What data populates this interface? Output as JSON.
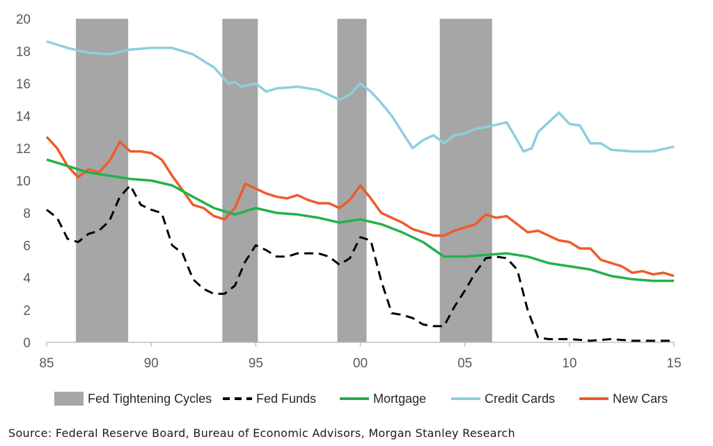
{
  "source": "Source: Federal Reserve Board, Bureau of Economic Advisors, Morgan Stanley Research",
  "chart_data": {
    "type": "line",
    "title": "",
    "xlabel": "",
    "ylabel": "",
    "xlim": [
      1985,
      2015
    ],
    "ylim": [
      0,
      20
    ],
    "x_ticks": [
      1985,
      1990,
      1995,
      2000,
      2005,
      2010,
      2015
    ],
    "x_tick_labels": [
      "85",
      "90",
      "95",
      "00",
      "05",
      "10",
      "15"
    ],
    "y_ticks": [
      0,
      2,
      4,
      6,
      8,
      10,
      12,
      14,
      16,
      18,
      20
    ],
    "y_tick_labels": [
      "0",
      "2",
      "4",
      "6",
      "8",
      "10",
      "12",
      "14",
      "16",
      "18",
      "20"
    ],
    "grid": false,
    "legend_position": "bottom",
    "tightening_cycles": [
      {
        "start": 1986.4,
        "end": 1988.9
      },
      {
        "start": 1993.4,
        "end": 1995.1
      },
      {
        "start": 1998.9,
        "end": 2000.3
      },
      {
        "start": 2003.8,
        "end": 2006.3
      }
    ],
    "legend": [
      {
        "key": "tightening",
        "label": "Fed Tightening Cycles",
        "color": "#a6a6a6",
        "style": "box"
      },
      {
        "key": "fed_funds",
        "label": "Fed Funds",
        "color": "#000000",
        "style": "dashed"
      },
      {
        "key": "mortgage",
        "label": "Mortgage",
        "color": "#22b14c",
        "style": "solid"
      },
      {
        "key": "credit_cards",
        "label": "Credit Cards",
        "color": "#8ccfde",
        "style": "solid"
      },
      {
        "key": "new_cars",
        "label": "New Cars",
        "color": "#f05a28",
        "style": "solid"
      }
    ],
    "series": [
      {
        "key": "credit_cards",
        "name": "Credit Cards",
        "color": "#8ccfde",
        "x": [
          1985,
          1986,
          1987,
          1988,
          1989,
          1990,
          1991,
          1992,
          1993,
          1993.7,
          1994,
          1994.3,
          1995,
          1995.5,
          1996,
          1997,
          1998,
          1999,
          1999.5,
          2000,
          2000.5,
          2001,
          2001.5,
          2002,
          2002.5,
          2003,
          2003.5,
          2004,
          2004.5,
          2005,
          2005.5,
          2006,
          2007,
          2007.5,
          2007.8,
          2008.2,
          2008.5,
          2009,
          2009.5,
          2010,
          2010.5,
          2011,
          2011.5,
          2012,
          2013,
          2014,
          2015
        ],
        "values": [
          18.6,
          18.2,
          17.9,
          17.8,
          18.1,
          18.2,
          18.2,
          17.8,
          17.0,
          16.0,
          16.1,
          15.8,
          16.0,
          15.5,
          15.7,
          15.8,
          15.6,
          15.0,
          15.3,
          16.0,
          15.5,
          14.8,
          14.0,
          13.0,
          12.0,
          12.5,
          12.8,
          12.3,
          12.8,
          12.9,
          13.2,
          13.3,
          13.6,
          12.5,
          11.8,
          12.0,
          13.0,
          13.6,
          14.2,
          13.5,
          13.4,
          12.3,
          12.3,
          11.9,
          11.8,
          11.8,
          12.1
        ]
      },
      {
        "key": "new_cars",
        "name": "New Cars",
        "color": "#f05a28",
        "x": [
          1985,
          1985.5,
          1986,
          1986.5,
          1987,
          1987.5,
          1988,
          1988.5,
          1989,
          1989.5,
          1990,
          1990.5,
          1991,
          1991.5,
          1992,
          1992.5,
          1993,
          1993.5,
          1994,
          1994.5,
          1995,
          1995.5,
          1996,
          1996.5,
          1997,
          1997.5,
          1998,
          1998.5,
          1999,
          1999.5,
          2000,
          2000.5,
          2001,
          2001.5,
          2002,
          2002.5,
          2003,
          2003.5,
          2004,
          2004.5,
          2005,
          2005.5,
          2006,
          2006.5,
          2007,
          2007.5,
          2008,
          2008.5,
          2009,
          2009.5,
          2010,
          2010.5,
          2011,
          2011.5,
          2012,
          2012.5,
          2013,
          2013.5,
          2014,
          2014.5,
          2015
        ],
        "values": [
          12.7,
          12.0,
          10.9,
          10.2,
          10.7,
          10.5,
          11.2,
          12.4,
          11.8,
          11.8,
          11.7,
          11.3,
          10.3,
          9.4,
          8.5,
          8.3,
          7.8,
          7.6,
          8.3,
          9.8,
          9.5,
          9.2,
          9.0,
          8.9,
          9.1,
          8.8,
          8.6,
          8.6,
          8.3,
          8.8,
          9.7,
          8.9,
          8.0,
          7.7,
          7.4,
          7.0,
          6.8,
          6.6,
          6.6,
          6.9,
          7.1,
          7.3,
          7.9,
          7.7,
          7.8,
          7.3,
          6.8,
          6.9,
          6.6,
          6.3,
          6.2,
          5.8,
          5.8,
          5.1,
          4.9,
          4.7,
          4.3,
          4.4,
          4.2,
          4.3,
          4.1
        ]
      },
      {
        "key": "mortgage",
        "name": "Mortgage",
        "color": "#22b14c",
        "x": [
          1985,
          1986,
          1987,
          1988,
          1989,
          1990,
          1991,
          1992,
          1993,
          1994,
          1995,
          1996,
          1997,
          1998,
          1999,
          2000,
          2001,
          2002,
          2003,
          2004,
          2005,
          2006,
          2007,
          2008,
          2009,
          2010,
          2011,
          2012,
          2013,
          2014,
          2015
        ],
        "values": [
          11.3,
          10.9,
          10.5,
          10.3,
          10.1,
          10.0,
          9.7,
          9.0,
          8.3,
          7.9,
          8.3,
          8.0,
          7.9,
          7.7,
          7.4,
          7.6,
          7.3,
          6.8,
          6.2,
          5.3,
          5.3,
          5.4,
          5.5,
          5.3,
          4.9,
          4.7,
          4.5,
          4.1,
          3.9,
          3.8,
          3.8
        ]
      },
      {
        "key": "fed_funds",
        "name": "Fed Funds",
        "color": "#000000",
        "x": [
          1985,
          1985.5,
          1986,
          1986.5,
          1987,
          1987.5,
          1988,
          1988.5,
          1989,
          1989.5,
          1990,
          1990.5,
          1991,
          1991.5,
          1992,
          1992.5,
          1993,
          1993.5,
          1994,
          1994.5,
          1995,
          1995.5,
          1996,
          1996.5,
          1997,
          1997.5,
          1998,
          1998.5,
          1999,
          1999.5,
          2000,
          2000.5,
          2001,
          2001.5,
          2002,
          2002.5,
          2003,
          2003.5,
          2004,
          2004.5,
          2005,
          2005.5,
          2006,
          2006.5,
          2007,
          2007.5,
          2008,
          2008.5,
          2009,
          2010,
          2011,
          2012,
          2013,
          2014,
          2015
        ],
        "values": [
          8.2,
          7.7,
          6.4,
          6.2,
          6.7,
          6.9,
          7.5,
          9.0,
          9.7,
          8.5,
          8.2,
          8.0,
          6.0,
          5.5,
          3.9,
          3.3,
          3.0,
          3.0,
          3.5,
          5.0,
          6.0,
          5.7,
          5.3,
          5.3,
          5.5,
          5.5,
          5.5,
          5.3,
          4.8,
          5.2,
          6.5,
          6.3,
          3.8,
          1.8,
          1.7,
          1.5,
          1.1,
          1.0,
          1.0,
          2.2,
          3.2,
          4.3,
          5.2,
          5.3,
          5.2,
          4.5,
          2.0,
          0.3,
          0.2,
          0.2,
          0.1,
          0.2,
          0.1,
          0.1,
          0.1
        ]
      }
    ]
  }
}
